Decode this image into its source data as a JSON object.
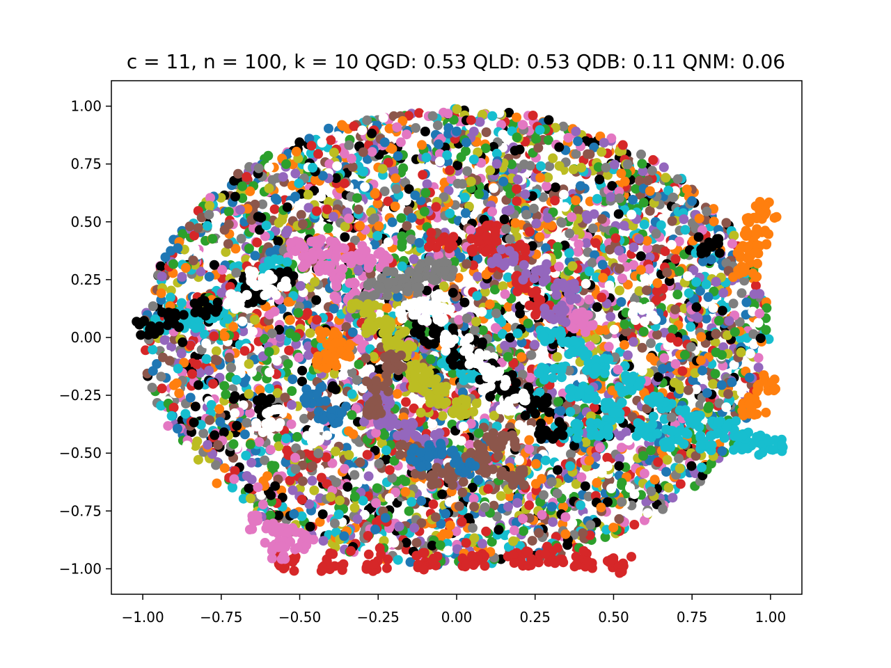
{
  "chart_data": {
    "type": "scatter",
    "title": "c = 11, n = 100, k = 10 QGD: 0.53 QLD: 0.53 QDB: 0.11 QNM: 0.06",
    "xlabel": "",
    "ylabel": "",
    "xlim": [
      -1.1,
      1.1
    ],
    "ylim": [
      -1.11,
      1.11
    ],
    "x_ticks": [
      -1.0,
      -0.75,
      -0.5,
      -0.25,
      0.0,
      0.25,
      0.5,
      0.75,
      1.0
    ],
    "y_ticks": [
      -1.0,
      -0.75,
      -0.5,
      -0.25,
      0.0,
      0.25,
      0.5,
      0.75,
      1.0
    ],
    "x_tick_labels": [
      "−1.00",
      "−0.75",
      "−0.50",
      "−0.25",
      "0.00",
      "0.25",
      "0.50",
      "0.75",
      "1.00"
    ],
    "y_tick_labels": [
      "−1.00",
      "−0.75",
      "−0.50",
      "−0.25",
      "0.00",
      "0.25",
      "0.50",
      "0.75",
      "1.00"
    ],
    "grid": false,
    "legend": "none",
    "colors": [
      "#1f77b4",
      "#ff7f0e",
      "#2ca02c",
      "#d62728",
      "#9467bd",
      "#8c564b",
      "#e377c2",
      "#7f7f7f",
      "#bcbd22",
      "#17becf",
      "#000000",
      "#ffffff"
    ],
    "series": [
      {
        "color": "#d62728",
        "values": [
          [
            -0.55,
            -0.98
          ],
          [
            -0.4,
            -0.97
          ],
          [
            -0.25,
            -0.97
          ],
          [
            -0.1,
            -0.97
          ],
          [
            0.05,
            -0.96
          ],
          [
            0.2,
            -0.95
          ],
          [
            0.3,
            -0.94
          ],
          [
            0.4,
            -0.96
          ],
          [
            0.52,
            -0.98
          ],
          [
            0.08,
            0.4
          ],
          [
            0.15,
            0.33
          ],
          [
            0.22,
            0.23
          ],
          [
            0.27,
            0.13
          ],
          [
            0.18,
            0.37
          ],
          [
            -0.05,
            0.42
          ],
          [
            0.1,
            0.45
          ]
        ]
      },
      {
        "color": "#ff7f0e",
        "values": [
          [
            0.92,
            0.3
          ],
          [
            0.95,
            0.42
          ],
          [
            0.98,
            0.55
          ],
          [
            0.96,
            0.48
          ],
          [
            0.93,
            0.36
          ],
          [
            -0.4,
            0.0
          ],
          [
            -0.42,
            -0.1
          ],
          [
            -0.38,
            -0.05
          ],
          [
            0.95,
            -0.3
          ],
          [
            0.98,
            -0.2
          ]
        ]
      },
      {
        "color": "#e377c2",
        "values": [
          [
            -0.5,
            0.38
          ],
          [
            -0.45,
            0.33
          ],
          [
            -0.4,
            0.28
          ],
          [
            -0.35,
            0.2
          ],
          [
            -0.3,
            0.16
          ],
          [
            -0.42,
            0.38
          ],
          [
            -0.33,
            0.36
          ],
          [
            -0.25,
            0.34
          ],
          [
            -0.62,
            -0.8
          ],
          [
            -0.55,
            -0.86
          ],
          [
            -0.58,
            -0.92
          ],
          [
            -0.5,
            -0.88
          ],
          [
            0.4,
            0.05
          ],
          [
            0.38,
            0.12
          ]
        ]
      },
      {
        "color": "#7f7f7f",
        "values": [
          [
            -0.1,
            0.28
          ],
          [
            -0.2,
            0.25
          ],
          [
            -0.15,
            0.22
          ],
          [
            -0.05,
            0.3
          ],
          [
            -0.25,
            0.2
          ],
          [
            -0.3,
            0.15
          ]
        ]
      },
      {
        "color": "#bcbd22",
        "values": [
          [
            -0.3,
            0.12
          ],
          [
            -0.25,
            0.05
          ],
          [
            -0.18,
            -0.05
          ],
          [
            -0.12,
            -0.15
          ],
          [
            -0.05,
            -0.25
          ],
          [
            0.02,
            -0.3
          ],
          [
            -0.2,
            0.0
          ],
          [
            -0.1,
            -0.2
          ]
        ]
      },
      {
        "color": "#9467bd",
        "values": [
          [
            0.15,
            0.35
          ],
          [
            0.25,
            0.28
          ],
          [
            0.35,
            0.2
          ],
          [
            0.32,
            0.1
          ],
          [
            -0.25,
            -0.25
          ],
          [
            -0.22,
            -0.35
          ],
          [
            -0.15,
            -0.4
          ],
          [
            -0.08,
            -0.45
          ]
        ]
      },
      {
        "color": "#8c564b",
        "values": [
          [
            -0.2,
            -0.1
          ],
          [
            -0.25,
            -0.2
          ],
          [
            -0.28,
            -0.3
          ],
          [
            -0.15,
            -0.5
          ],
          [
            0.1,
            -0.55
          ],
          [
            0.18,
            -0.6
          ],
          [
            -0.05,
            -0.6
          ],
          [
            0.05,
            -0.5
          ],
          [
            0.15,
            -0.45
          ]
        ]
      },
      {
        "color": "#1f77b4",
        "values": [
          [
            -0.05,
            -0.48
          ],
          [
            0.02,
            -0.55
          ],
          [
            -0.45,
            -0.25
          ],
          [
            -0.4,
            -0.35
          ],
          [
            -0.12,
            -0.52
          ]
        ]
      },
      {
        "color": "#17becf",
        "values": [
          [
            0.3,
            0.0
          ],
          [
            0.38,
            -0.05
          ],
          [
            0.45,
            -0.12
          ],
          [
            0.55,
            -0.2
          ],
          [
            0.65,
            -0.28
          ],
          [
            0.75,
            -0.35
          ],
          [
            0.85,
            -0.4
          ],
          [
            0.95,
            -0.45
          ],
          [
            1.0,
            -0.47
          ],
          [
            0.3,
            -0.15
          ],
          [
            0.4,
            -0.25
          ],
          [
            0.5,
            -0.32
          ],
          [
            0.6,
            -0.4
          ],
          [
            0.7,
            -0.44
          ],
          [
            0.8,
            -0.45
          ],
          [
            0.9,
            -0.45
          ],
          [
            0.35,
            -0.4
          ],
          [
            0.45,
            -0.4
          ],
          [
            -0.58,
            0.3
          ],
          [
            -0.65,
            0.2
          ],
          [
            -0.75,
            0.12
          ],
          [
            -0.85,
            0.08
          ],
          [
            -0.95,
            0.05
          ],
          [
            0.0,
            -0.1
          ],
          [
            0.05,
            -0.15
          ]
        ]
      },
      {
        "color": "#000000",
        "values": [
          [
            -0.55,
            0.25
          ],
          [
            -0.65,
            0.18
          ],
          [
            -0.8,
            0.12
          ],
          [
            -0.9,
            0.07
          ],
          [
            -0.98,
            0.05
          ],
          [
            0.05,
            -0.05
          ],
          [
            0.1,
            -0.15
          ],
          [
            0.15,
            -0.2
          ],
          [
            0.2,
            -0.25
          ],
          [
            0.25,
            -0.3
          ],
          [
            -0.05,
            0.0
          ],
          [
            0.02,
            -0.08
          ],
          [
            -0.1,
            0.05
          ],
          [
            -0.6,
            -0.3
          ],
          [
            0.8,
            0.4
          ],
          [
            0.3,
            -0.4
          ]
        ]
      },
      {
        "color": "#ffffff",
        "values": [
          [
            -0.58,
            0.22
          ],
          [
            -0.62,
            0.25
          ],
          [
            -0.7,
            0.16
          ],
          [
            0.0,
            -0.02
          ],
          [
            0.08,
            -0.1
          ],
          [
            0.12,
            -0.18
          ],
          [
            0.18,
            -0.28
          ],
          [
            -0.08,
            0.1
          ],
          [
            -0.05,
            0.15
          ],
          [
            -0.15,
            0.12
          ],
          [
            -0.45,
            -0.42
          ],
          [
            0.6,
            0.1
          ],
          [
            -0.6,
            -0.35
          ]
        ]
      }
    ]
  }
}
